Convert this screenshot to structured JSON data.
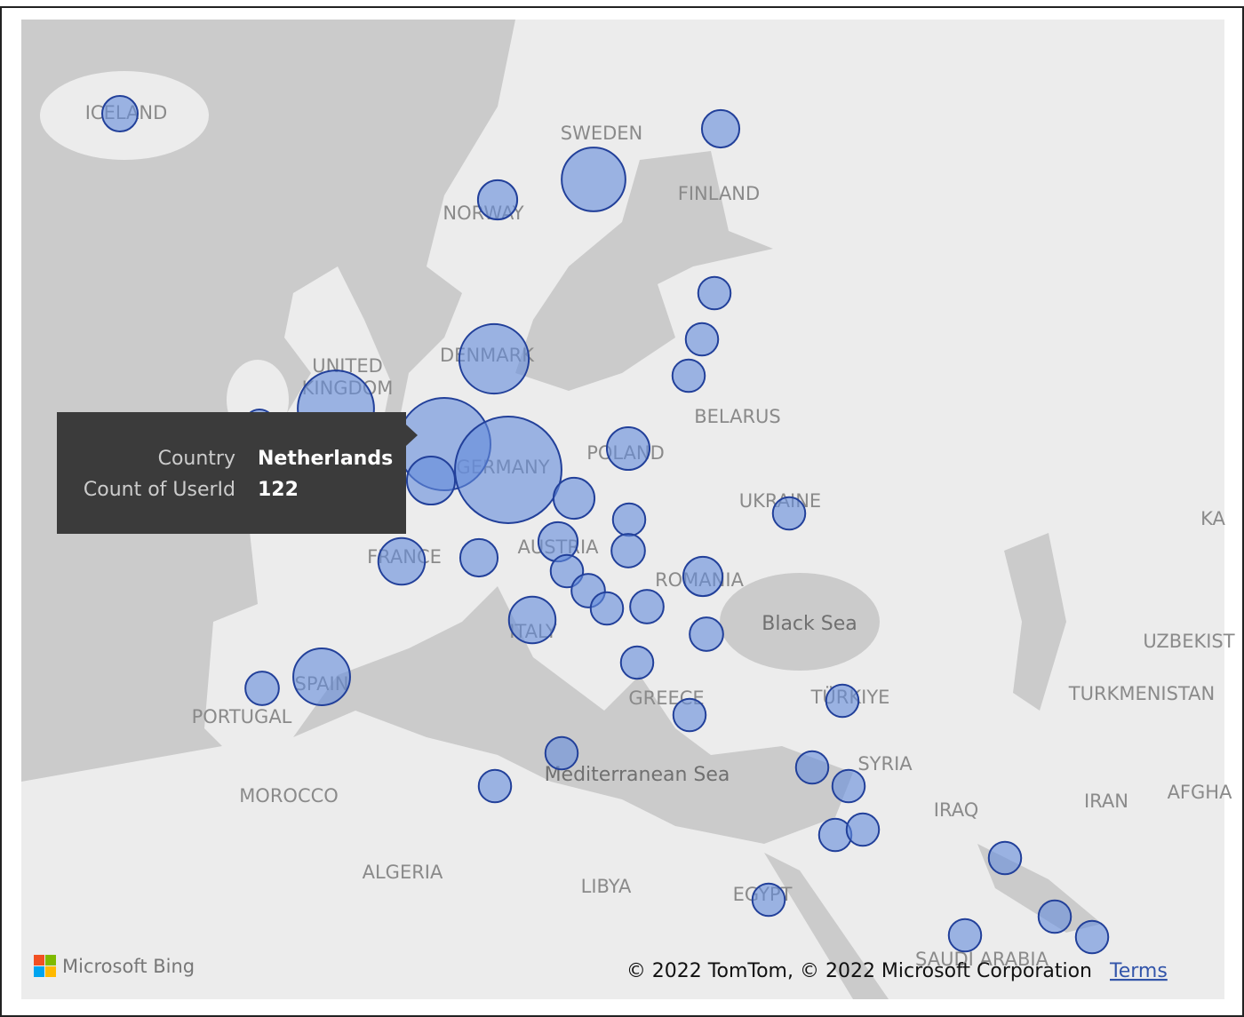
{
  "map": {
    "labels": [
      "ICELAND",
      "SWEDEN",
      "FINLAND",
      "NORWAY",
      "DENMARK",
      "UNITED",
      "KINGDOM",
      "BELARUS",
      "POLAND",
      "GERMANY",
      "UKRAINE",
      "AUSTRIA",
      "FRANCE",
      "ROMANIA",
      "Black Sea",
      "ITALY",
      "SPAIN",
      "PORTUGAL",
      "GREECE",
      "TÜRKIYE",
      "SYRIA",
      "Mediterranean Sea",
      "MOROCCO",
      "ALGERIA",
      "LIBYA",
      "EGYPT",
      "IRAQ",
      "IRAN",
      "SAUDI ARABIA",
      "UZBEKIST",
      "TURKMENISTAN",
      "AFGHA",
      "KA"
    ],
    "bubbles": [
      18,
      20,
      58,
      22,
      15,
      15,
      15,
      69,
      83,
      13,
      122,
      33,
      162,
      15,
      24,
      26,
      15,
      16,
      22,
      20,
      31,
      15,
      16,
      15,
      16,
      22,
      16,
      15,
      31,
      15,
      15,
      46,
      16,
      15,
      15,
      15,
      15,
      15,
      15,
      15,
      15,
      15,
      15,
      15,
      15
    ]
  },
  "tooltip": {
    "rows": [
      [
        "Country",
        "Netherlands"
      ],
      [
        "Count of UserId",
        122
      ]
    ]
  },
  "footer": {
    "brand": "Microsoft Bing",
    "copyright": "© 2022 TomTom, © 2022 Microsoft Corporation",
    "terms": "Terms"
  }
}
